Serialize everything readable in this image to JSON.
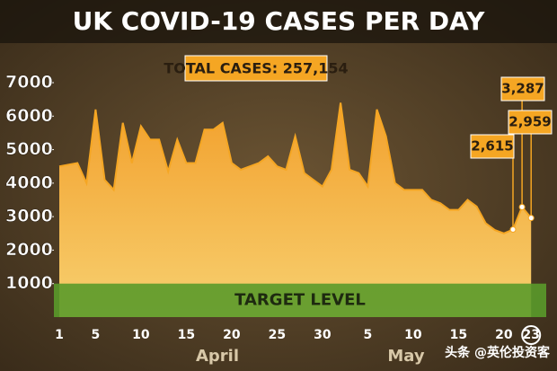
{
  "chart_data": {
    "type": "area",
    "title": "UK COVID-19 CASES PER DAY",
    "annotation": "TOTAL CASES: 257,154",
    "categories": [
      "1",
      null,
      null,
      null,
      "5",
      null,
      null,
      null,
      null,
      "10",
      null,
      null,
      null,
      null,
      "15",
      null,
      null,
      null,
      null,
      "20",
      null,
      null,
      null,
      null,
      "25",
      null,
      null,
      null,
      null,
      "30",
      null,
      null,
      null,
      null,
      "5",
      null,
      null,
      null,
      null,
      "10",
      null,
      null,
      null,
      null,
      "15",
      null,
      null,
      null,
      null,
      "20",
      null,
      null,
      "23"
    ],
    "month_labels": [
      "April",
      "May"
    ],
    "series": [
      {
        "name": "Cases per day",
        "color": "#f5a623",
        "values": [
          4500,
          4550,
          4600,
          4000,
          6200,
          4100,
          3800,
          5800,
          4600,
          5700,
          5300,
          5300,
          4350,
          5300,
          4600,
          4600,
          5600,
          5600,
          5800,
          4600,
          4400,
          4500,
          4600,
          4800,
          4500,
          4400,
          5400,
          4300,
          4100,
          3900,
          4400,
          6400,
          4400,
          4300,
          3900,
          6200,
          5400,
          4000,
          3800,
          3800,
          3800,
          3500,
          3400,
          3200,
          3200,
          3500,
          3300,
          2800,
          2600,
          2500,
          2615,
          3287,
          2959
        ],
        "value_labels": {
          "50": "2,615",
          "51": "3,287",
          "52": "2,959"
        }
      }
    ],
    "target": {
      "label": "TARGET LEVEL",
      "value": 1000,
      "color": "#5a9a2a"
    },
    "ylim": [
      0,
      7000
    ],
    "yticks": [
      1000,
      2000,
      3000,
      4000,
      5000,
      6000,
      7000
    ],
    "watermark": "头条 @英伦投资客"
  }
}
